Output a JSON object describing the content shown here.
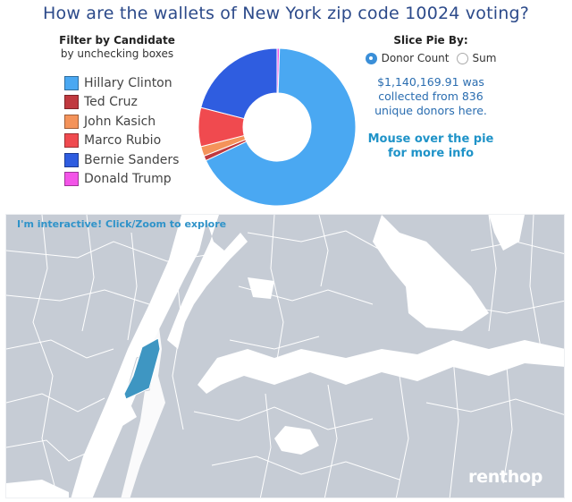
{
  "page": {
    "title": "How are the wallets of New York zip code 10024 voting?"
  },
  "filter": {
    "heading": "Filter by Candidate",
    "subheading": "by unchecking boxes",
    "candidates": [
      {
        "label": "Hillary Clinton",
        "color": "#4aa8f2"
      },
      {
        "label": "Ted Cruz",
        "color": "#c0393f"
      },
      {
        "label": "John Kasich",
        "color": "#f4935a"
      },
      {
        "label": "Marco Rubio",
        "color": "#f04a4f"
      },
      {
        "label": "Bernie Sanders",
        "color": "#2f5de0"
      },
      {
        "label": "Donald Trump",
        "color": "#f354e8"
      }
    ]
  },
  "slice": {
    "heading": "Slice Pie By:",
    "options": [
      {
        "label": "Donor Count",
        "selected": true
      },
      {
        "label": "Sum",
        "selected": false
      }
    ],
    "summary_line1": "$1,140,169.91 was",
    "summary_line2": "collected from 836",
    "summary_line3": "unique donors here.",
    "hover_line1": "Mouse over the pie",
    "hover_line2": "for more info"
  },
  "chart_data": {
    "type": "pie",
    "donut": true,
    "categories": [
      "Hillary Clinton",
      "Ted Cruz",
      "John Kasich",
      "Marco Rubio",
      "Bernie Sanders",
      "Donald Trump"
    ],
    "values": [
      67.5,
      1,
      2,
      8,
      21,
      0.5
    ],
    "colors": [
      "#4aa8f2",
      "#c0393f",
      "#f4935a",
      "#f04a4f",
      "#2f5de0",
      "#f354e8"
    ]
  },
  "map": {
    "hint": "I'm interactive! Click/Zoom to explore",
    "brand": "renthop",
    "land_color": "#c6ccd5",
    "water_color": "#ffffff",
    "highlight_color": "#3e96c2",
    "boundary_color": "#ffffff"
  }
}
